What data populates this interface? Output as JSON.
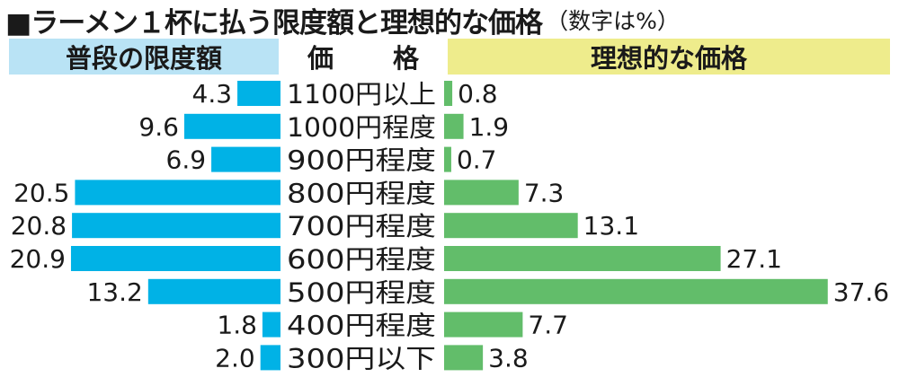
{
  "title": "■ラーメン１杯に払う限度額と理想的な価格",
  "title_note": "（数字は%）",
  "colors": {
    "left_bar": "#00b2e6",
    "right_bar": "#62bd6a",
    "left_header_bg": "#b9e3f5",
    "right_header_bg": "#eeec8c"
  },
  "chart_data": {
    "type": "bar",
    "orientation": "horizontal-butterfly",
    "unit": "%",
    "category_header": "価 格",
    "categories": [
      "1100円以上",
      "1000円程度",
      "900円程度",
      "800円程度",
      "700円程度",
      "600円程度",
      "500円程度",
      "400円程度",
      "300円以下"
    ],
    "series": [
      {
        "name": "普段の限度額",
        "side": "left",
        "values": [
          4.3,
          9.6,
          6.9,
          20.5,
          20.8,
          20.9,
          13.2,
          1.8,
          2.0
        ],
        "labels": [
          "4.3",
          "9.6",
          "6.9",
          "20.5",
          "20.8",
          "20.9",
          "13.2",
          "1.8",
          "2.0"
        ]
      },
      {
        "name": "理想的な価格",
        "side": "right",
        "values": [
          0.8,
          1.9,
          0.7,
          7.3,
          13.1,
          27.1,
          37.6,
          7.7,
          3.8
        ],
        "labels": [
          "0.8",
          "1.9",
          "0.7",
          "7.3",
          "13.1",
          "27.1",
          "37.6",
          "7.7",
          "3.8"
        ]
      }
    ]
  }
}
